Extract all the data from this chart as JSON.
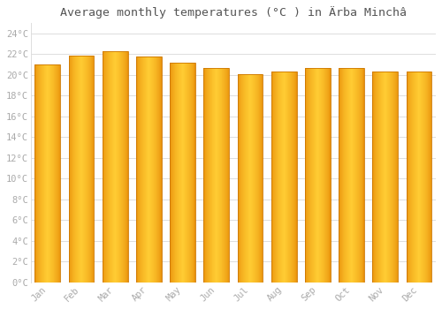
{
  "title": "Average monthly temperatures (°C ) in Ärba Minchâ",
  "months": [
    "Jan",
    "Feb",
    "Mar",
    "Apr",
    "May",
    "Jun",
    "Jul",
    "Aug",
    "Sep",
    "Oct",
    "Nov",
    "Dec"
  ],
  "values": [
    21.0,
    21.9,
    22.3,
    21.8,
    21.2,
    20.7,
    20.1,
    20.3,
    20.7,
    20.7,
    20.3,
    20.3
  ],
  "ylim": [
    0,
    25
  ],
  "yticks": [
    0,
    2,
    4,
    6,
    8,
    10,
    12,
    14,
    16,
    18,
    20,
    22,
    24
  ],
  "ytick_labels": [
    "0°C",
    "2°C",
    "4°C",
    "6°C",
    "8°C",
    "10°C",
    "12°C",
    "14°C",
    "16°C",
    "18°C",
    "20°C",
    "22°C",
    "24°C"
  ],
  "background_color": "#ffffff",
  "grid_color": "#dddddd",
  "font_color": "#aaaaaa",
  "title_font_color": "#555555",
  "title_fontsize": 9.5,
  "tick_fontsize": 7.5,
  "bar_color_left": "#E8900A",
  "bar_color_center": "#FFCC33",
  "bar_edge_color": "#CC7700",
  "bar_width": 0.75,
  "n_grad": 60
}
